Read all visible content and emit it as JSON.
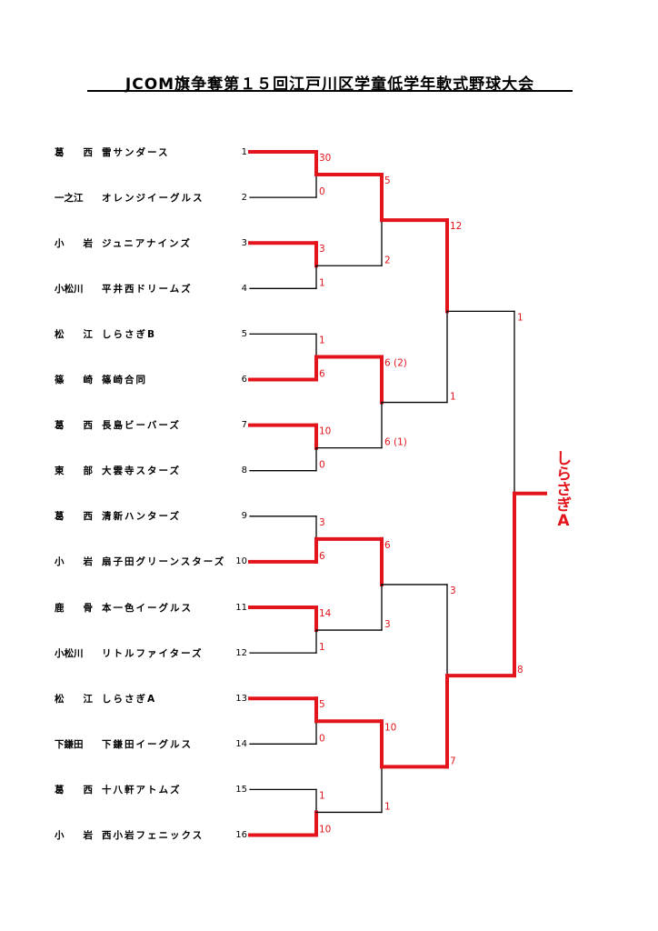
{
  "title": "JCOM旗争奪第１５回江戸川区学童低学年軟式野球大会",
  "colors": {
    "winner_line": "#e3141b",
    "loser_line": "#000000",
    "score_text": "#e3141b"
  },
  "teams": [
    {
      "seed": "1",
      "pref": "葛　　西",
      "name": "雷サンダース"
    },
    {
      "seed": "2",
      "pref": "一之江",
      "name": "オレンジイーグルス"
    },
    {
      "seed": "3",
      "pref": "小　　岩",
      "name": "ジュニアナインズ"
    },
    {
      "seed": "4",
      "pref": "小松川",
      "name": "平井西ドリームズ"
    },
    {
      "seed": "5",
      "pref": "松　　江",
      "name": "しらさぎB"
    },
    {
      "seed": "6",
      "pref": "篠　　崎",
      "name": "篠崎合同"
    },
    {
      "seed": "7",
      "pref": "葛　　西",
      "name": "長島ビーバーズ"
    },
    {
      "seed": "8",
      "pref": "東　　部",
      "name": "大雲寺スターズ"
    },
    {
      "seed": "9",
      "pref": "葛　　西",
      "name": "清新ハンターズ"
    },
    {
      "seed": "10",
      "pref": "小　　岩",
      "name": "扇子田グリーンスターズ"
    },
    {
      "seed": "11",
      "pref": "鹿　　骨",
      "name": "本一色イーグルス"
    },
    {
      "seed": "12",
      "pref": "小松川",
      "name": "リトルファイターズ"
    },
    {
      "seed": "13",
      "pref": "松　　江",
      "name": "しらさぎA"
    },
    {
      "seed": "14",
      "pref": "下鎌田",
      "name": "下鎌田イーグルス"
    },
    {
      "seed": "15",
      "pref": "葛　　西",
      "name": "十八軒アトムズ"
    },
    {
      "seed": "16",
      "pref": "小　　岩",
      "name": "西小岩フェニックス"
    }
  ],
  "round1": [
    {
      "top_score": "30",
      "bottom_score": "0",
      "winner": "top"
    },
    {
      "top_score": "3",
      "bottom_score": "1",
      "winner": "top"
    },
    {
      "top_score": "1",
      "bottom_score": "6",
      "winner": "bottom"
    },
    {
      "top_score": "10",
      "bottom_score": "0",
      "winner": "top"
    },
    {
      "top_score": "3",
      "bottom_score": "6",
      "winner": "bottom"
    },
    {
      "top_score": "14",
      "bottom_score": "1",
      "winner": "top"
    },
    {
      "top_score": "5",
      "bottom_score": "0",
      "winner": "top"
    },
    {
      "top_score": "1",
      "bottom_score": "10",
      "winner": "bottom"
    }
  ],
  "round2": [
    {
      "top_score": "5",
      "bottom_score": "2",
      "winner": "top"
    },
    {
      "top_score": "6 (2)",
      "bottom_score": "6 (1)",
      "winner": "top"
    },
    {
      "top_score": "6",
      "bottom_score": "3",
      "winner": "top"
    },
    {
      "top_score": "10",
      "bottom_score": "1",
      "winner": "top"
    }
  ],
  "round3": [
    {
      "top_score": "12",
      "bottom_score": "1",
      "winner": "top"
    },
    {
      "top_score": "3",
      "bottom_score": "7",
      "winner": "bottom"
    }
  ],
  "final": {
    "top_score": "1",
    "bottom_score": "8",
    "winner": "bottom"
  },
  "champion": "しらさぎA"
}
